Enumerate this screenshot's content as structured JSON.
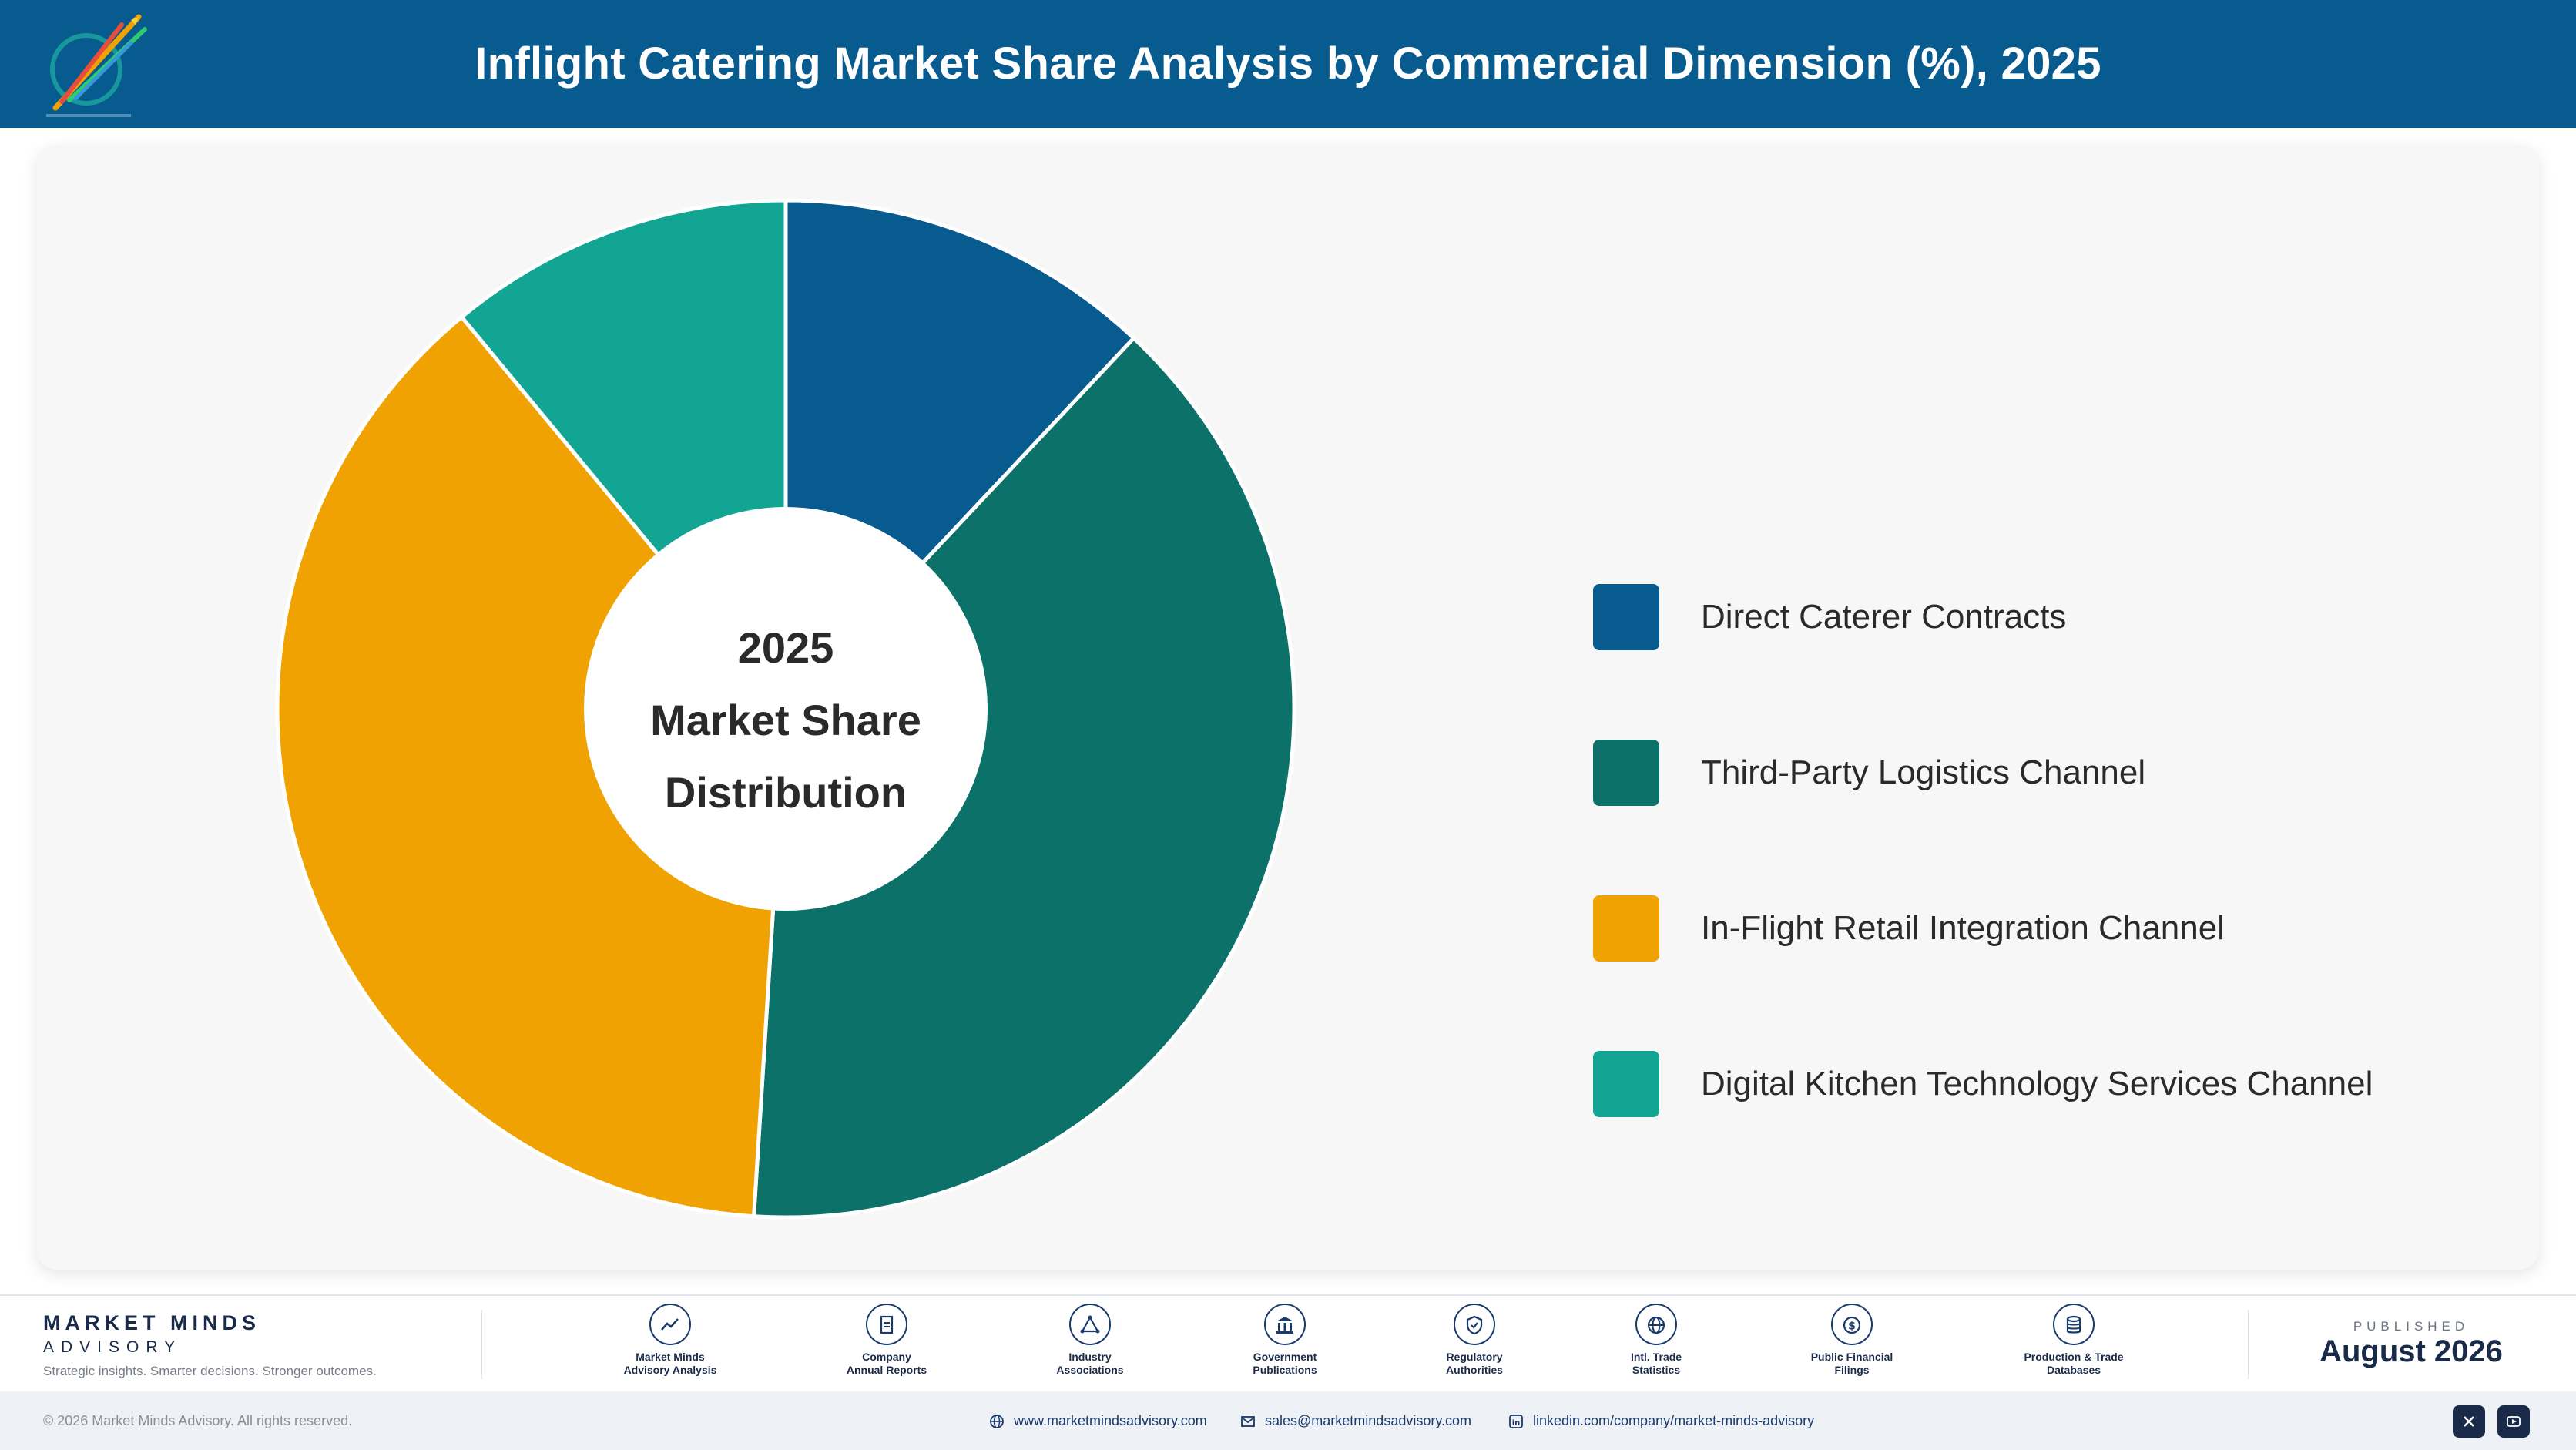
{
  "header": {
    "title": "Inflight Catering Market Share Analysis by Commercial Dimension (%), 2025"
  },
  "chart_data": {
    "type": "pie",
    "variant": "donut",
    "center_label": [
      "2025",
      "Market Share",
      "Distribution"
    ],
    "categories": [
      "Direct Caterer Contracts",
      "Third-Party Logistics Channel",
      "In-Flight Retail Integration Channel",
      "Digital Kitchen Technology Services Channel"
    ],
    "values": [
      12,
      39,
      38,
      11
    ],
    "colors": [
      "#075b8f",
      "#0c7169",
      "#f0a202",
      "#12a594"
    ],
    "legend_position": "right"
  },
  "footer": {
    "brand_name": "MARKET MINDS",
    "brand_sub": "ADVISORY",
    "tagline": "Strategic insights. Smarter decisions. Stronger outcomes.",
    "sources": [
      {
        "label": "Market Minds\nAdvisory Analysis",
        "icon": "chart-line-icon"
      },
      {
        "label": "Company\nAnnual Reports",
        "icon": "document-icon"
      },
      {
        "label": "Industry\nAssociations",
        "icon": "network-icon"
      },
      {
        "label": "Government\nPublications",
        "icon": "government-building-icon"
      },
      {
        "label": "Regulatory\nAuthorities",
        "icon": "shield-check-icon"
      },
      {
        "label": "Intl. Trade\nStatistics",
        "icon": "globe-icon"
      },
      {
        "label": "Public Financial\nFilings",
        "icon": "dollar-coin-icon"
      },
      {
        "label": "Production & Trade\nDatabases",
        "icon": "database-icon"
      }
    ],
    "published_label": "PUBLISHED",
    "published_date": "August 2026",
    "copyright": "© 2026 Market Minds Advisory. All rights reserved.",
    "website": "www.marketmindsadvisory.com",
    "email": "sales@marketmindsadvisory.com",
    "linkedin": "linkedin.com/company/market-minds-advisory",
    "social": [
      "x-icon",
      "youtube-icon"
    ]
  }
}
